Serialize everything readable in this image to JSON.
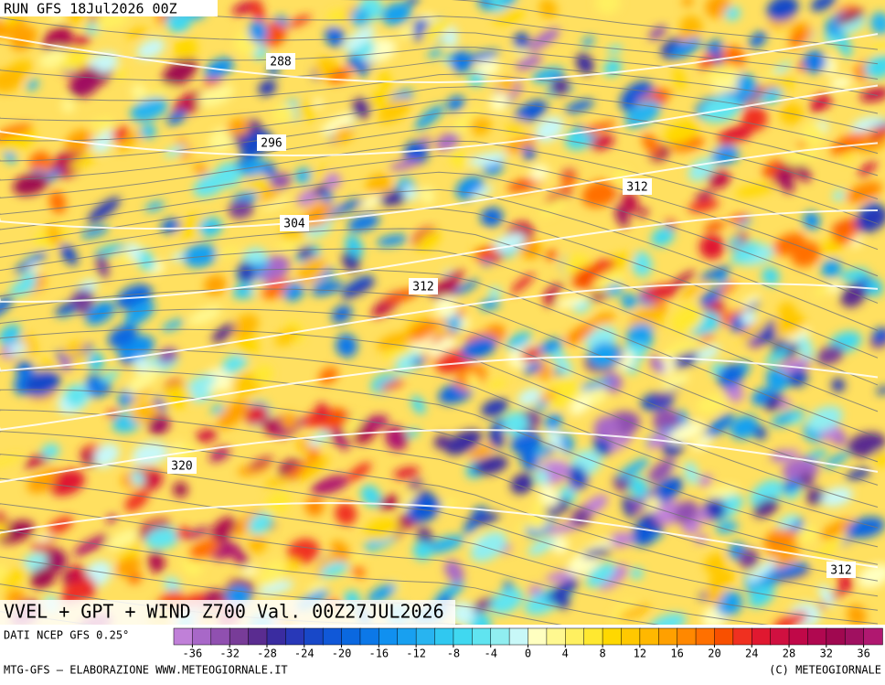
{
  "header": {
    "run": "RUN GFS 18Jul2026 00Z",
    "title": "VVEL + GPT + WIND Z700 Val. 00Z27JUL2026",
    "source": "DATI NCEP GFS 0.25°",
    "credit_left": "MTG-GFS — ELABORAZIONE WWW.METEOGIORNALE.IT",
    "credit_right": "(C) METEOGIORNALE"
  },
  "contour_labels": [
    "288",
    "296",
    "304",
    "312",
    "312",
    "320",
    "312"
  ],
  "colorbar": {
    "range": [
      -38,
      38
    ],
    "ticks": [
      -36,
      -32,
      -28,
      -24,
      -20,
      -16,
      -12,
      -8,
      -4,
      0,
      4,
      8,
      12,
      16,
      20,
      24,
      28,
      32,
      36
    ],
    "colors": [
      "#c080d8",
      "#a868c8",
      "#9050b0",
      "#783c98",
      "#5a2c90",
      "#3a2ca0",
      "#2838b8",
      "#1848c8",
      "#1058d8",
      "#0a68e0",
      "#0c78e8",
      "#1090f0",
      "#18a0f0",
      "#28b4f0",
      "#30c8f0",
      "#40d8f0",
      "#60e4f0",
      "#90eef0",
      "#c8f8f8",
      "#ffffc0",
      "#fff890",
      "#fff060",
      "#ffe830",
      "#ffd800",
      "#ffc800",
      "#ffb800",
      "#ffa000",
      "#ff8800",
      "#ff7000",
      "#f85000",
      "#f03020",
      "#e01830",
      "#d01040",
      "#c00848",
      "#b00850",
      "#a00850",
      "#a01060",
      "#b01870"
    ]
  }
}
